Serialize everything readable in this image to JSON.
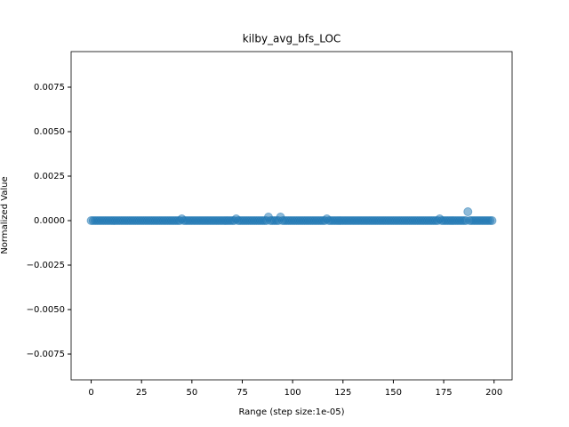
{
  "chart_data": {
    "type": "scatter",
    "title": "kilby_avg_bfs_LOC",
    "xlabel": "Range (step size:1e-05)",
    "ylabel": "Normalized Value",
    "color": "#1f77b4",
    "x": [
      0,
      1,
      2,
      3,
      4,
      5,
      6,
      7,
      8,
      9,
      10,
      11,
      12,
      13,
      14,
      15,
      16,
      17,
      18,
      19,
      20,
      21,
      22,
      23,
      24,
      25,
      26,
      27,
      28,
      29,
      30,
      31,
      32,
      33,
      34,
      35,
      36,
      37,
      38,
      39,
      40,
      41,
      42,
      43,
      44,
      45,
      46,
      47,
      48,
      49,
      50,
      51,
      52,
      53,
      54,
      55,
      56,
      57,
      58,
      59,
      60,
      61,
      62,
      63,
      64,
      65,
      66,
      67,
      68,
      69,
      70,
      71,
      72,
      73,
      74,
      75,
      76,
      77,
      78,
      79,
      80,
      81,
      82,
      83,
      84,
      85,
      86,
      87,
      88,
      89,
      90,
      91,
      92,
      93,
      94,
      95,
      96,
      97,
      98,
      99,
      100,
      101,
      102,
      103,
      104,
      105,
      106,
      107,
      108,
      109,
      110,
      111,
      112,
      113,
      114,
      115,
      116,
      117,
      118,
      119,
      120,
      121,
      122,
      123,
      124,
      125,
      126,
      127,
      128,
      129,
      130,
      131,
      132,
      133,
      134,
      135,
      136,
      137,
      138,
      139,
      140,
      141,
      142,
      143,
      144,
      145,
      146,
      147,
      148,
      149,
      150,
      151,
      152,
      153,
      154,
      155,
      156,
      157,
      158,
      159,
      160,
      161,
      162,
      163,
      164,
      165,
      166,
      167,
      168,
      169,
      170,
      171,
      172,
      173,
      174,
      175,
      176,
      177,
      178,
      179,
      180,
      181,
      182,
      183,
      184,
      185,
      186,
      187,
      188,
      189,
      190,
      191,
      192,
      193,
      194,
      195,
      196,
      197,
      198,
      199
    ],
    "values": [
      0,
      0,
      0,
      0,
      0,
      0,
      0,
      0,
      0,
      0,
      0,
      0,
      0,
      0,
      0,
      0,
      0,
      0,
      0,
      0,
      0,
      0,
      0,
      0,
      0,
      0,
      0,
      0,
      0,
      0,
      0,
      0,
      0,
      0,
      0,
      0,
      0,
      0,
      0,
      0,
      0,
      0,
      0,
      0,
      0,
      0.0001,
      0,
      0,
      0,
      0,
      0,
      0,
      0,
      0,
      0,
      0,
      0,
      0,
      0,
      0,
      0,
      0,
      0,
      0,
      0,
      0,
      0,
      0,
      0,
      0,
      0,
      0,
      0.0001,
      0,
      0,
      0,
      0,
      0,
      0,
      0,
      0,
      0,
      0,
      0,
      0,
      0,
      0,
      0,
      0.0002,
      0,
      0,
      0,
      0,
      0,
      0.0002,
      0,
      0,
      0,
      0,
      0,
      0,
      0,
      0,
      0,
      0,
      0,
      0,
      0,
      0,
      0,
      0,
      0,
      0,
      0,
      0,
      0,
      0,
      0.0001,
      0,
      0,
      0,
      0,
      0,
      0,
      0,
      0,
      0,
      0,
      0,
      0,
      0,
      0,
      0,
      0,
      0,
      0,
      0,
      0,
      0,
      0,
      0,
      0,
      0,
      0,
      0,
      0,
      0,
      0,
      0,
      0,
      0,
      0,
      0,
      0,
      0,
      0,
      0,
      0,
      0,
      0,
      0,
      0,
      0,
      0,
      0,
      0,
      0,
      0,
      0,
      0,
      0,
      0,
      0,
      0.0001,
      0,
      0,
      0,
      0,
      0,
      0,
      0,
      0,
      0,
      0,
      0,
      0,
      0,
      0.0005,
      0,
      0,
      0,
      0,
      0,
      0,
      0,
      0,
      0,
      0,
      0,
      0
    ],
    "xlim": [
      -9.95,
      208.95
    ],
    "xticks": [
      0,
      25,
      50,
      75,
      100,
      125,
      150,
      175,
      200
    ],
    "ylim": [
      -0.00895,
      0.0095
    ],
    "yticks": [
      {
        "value": -0.0075,
        "label": "−0.0075"
      },
      {
        "value": -0.005,
        "label": "−0.0050"
      },
      {
        "value": -0.0025,
        "label": "−0.0025"
      },
      {
        "value": 0,
        "label": "0.0000"
      },
      {
        "value": 0.0025,
        "label": "0.0025"
      },
      {
        "value": 0.005,
        "label": "0.0050"
      },
      {
        "value": 0.0075,
        "label": "0.0075"
      }
    ]
  }
}
